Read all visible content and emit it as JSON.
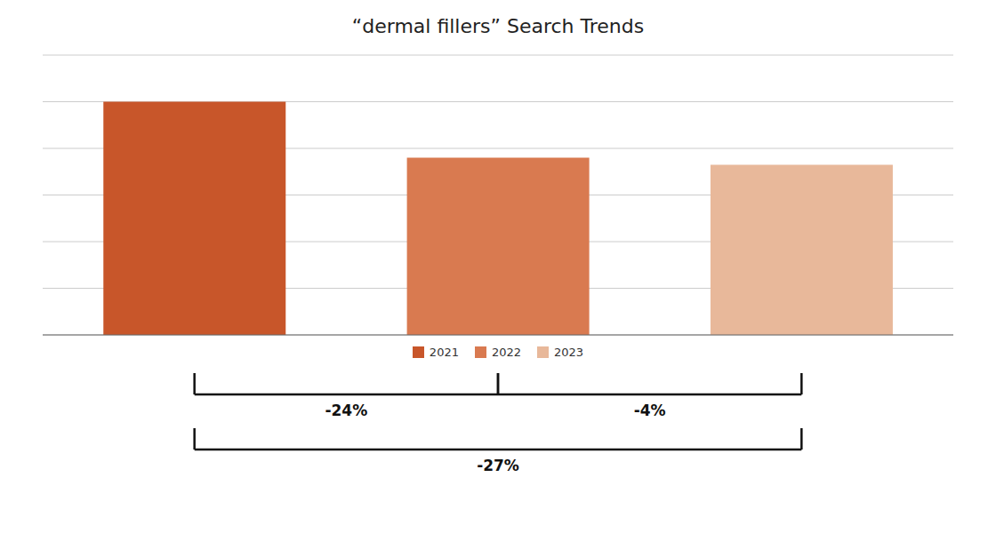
{
  "chart_data": {
    "type": "bar",
    "title": "“dermal fillers” Search Trends",
    "categories": [
      "2021",
      "2022",
      "2023"
    ],
    "values": [
      100,
      76,
      73
    ],
    "colors": [
      "#C8562A",
      "#D97A50",
      "#E8B89A"
    ],
    "ylim": [
      0,
      120
    ],
    "yticks": [
      20,
      40,
      60,
      80,
      100,
      120
    ],
    "grid": true,
    "tick_labels": false,
    "legend": "bottom",
    "annotations": [
      {
        "text": "-24%",
        "from": "2021",
        "to": "2022"
      },
      {
        "text": "-4%",
        "from": "2022",
        "to": "2023"
      },
      {
        "text": "-27%",
        "from": "2021",
        "to": "2023"
      }
    ]
  }
}
